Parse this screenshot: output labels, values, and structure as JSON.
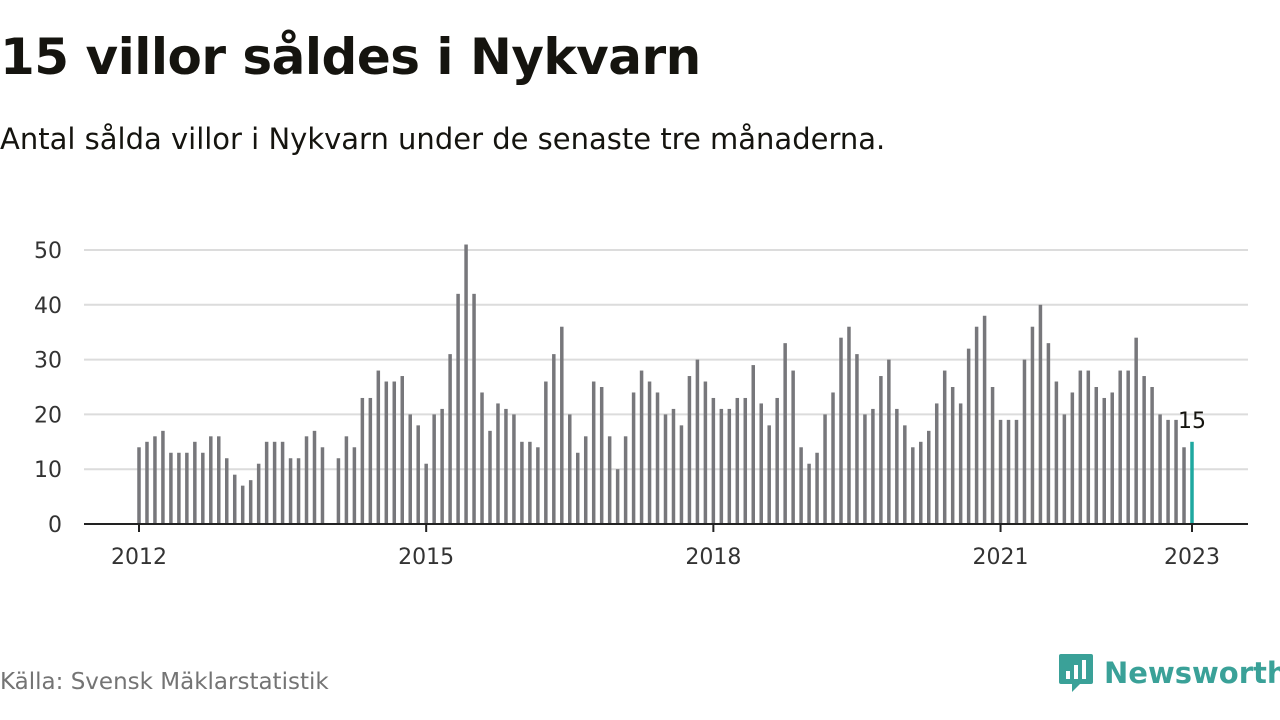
{
  "header": {
    "title": "15 villor såldes i Nykvarn",
    "subtitle": "Antal sålda villor i Nykvarn under de senaste tre månaderna."
  },
  "footer": {
    "source": "Källa: Svensk Mäklarstatistik",
    "brand": "Newsworthy",
    "brand_icon": "newsworthy-logo-icon"
  },
  "colors": {
    "bar": "#77777b",
    "highlight": "#1fa8a0",
    "grid": "#dcdcdc",
    "axis": "#222222",
    "brand": "#3aa198"
  },
  "chart_data": {
    "type": "bar",
    "title": "",
    "xlabel": "",
    "ylabel": "",
    "ylim": [
      0,
      50
    ],
    "yticks": [
      0,
      10,
      20,
      30,
      40,
      50
    ],
    "xticks": [
      "2012",
      "2015",
      "2018",
      "2021",
      "2023"
    ],
    "grid": true,
    "x_start": "2012-01",
    "x_end": "2023-01",
    "highlight_label": "15",
    "series": [
      {
        "values": [
          14,
          15,
          16,
          17,
          13,
          13,
          13,
          15,
          13,
          16,
          16,
          12,
          9,
          7,
          8,
          11,
          15,
          15,
          15,
          12,
          12,
          16,
          17,
          14,
          null,
          12,
          16,
          14,
          23,
          23,
          28,
          26,
          26,
          27,
          20,
          18,
          11,
          20,
          21,
          31,
          42,
          51,
          42,
          24,
          17,
          22,
          21,
          20,
          15,
          15,
          14,
          26,
          31,
          36,
          20,
          13,
          16,
          26,
          25,
          16,
          10,
          16,
          24,
          28,
          26,
          24,
          20,
          21,
          18,
          27,
          30,
          26,
          23,
          21,
          21,
          23,
          23,
          29,
          22,
          18,
          23,
          33,
          28,
          14,
          11,
          13,
          20,
          24,
          34,
          36,
          31,
          20,
          21,
          27,
          30,
          21,
          18,
          14,
          15,
          17,
          22,
          28,
          25,
          22,
          32,
          36,
          38,
          25,
          19,
          19,
          19,
          30,
          36,
          40,
          33,
          26,
          20,
          24,
          28,
          28,
          25,
          23,
          24,
          28,
          28,
          34,
          27,
          25,
          20,
          19,
          19,
          14,
          15
        ]
      }
    ]
  }
}
